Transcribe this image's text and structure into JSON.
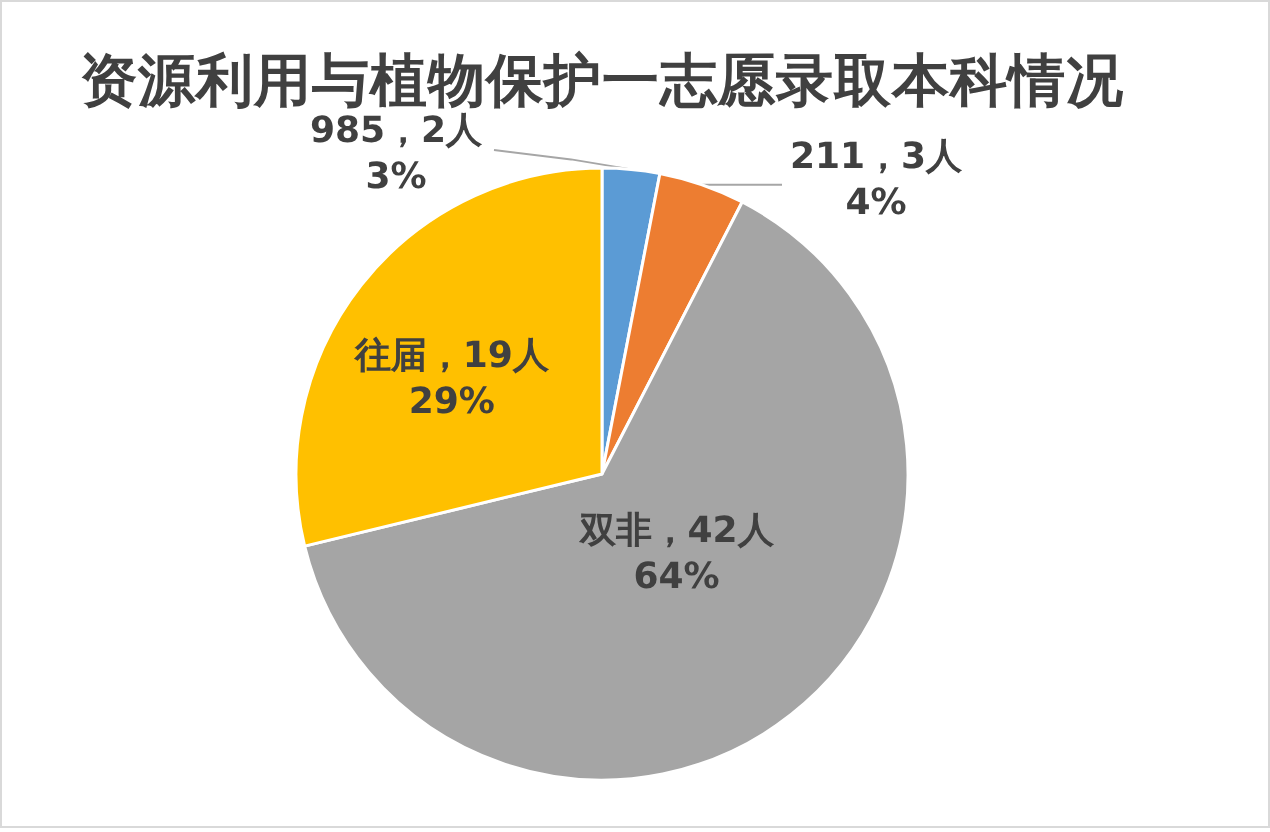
{
  "chart_data": {
    "type": "pie",
    "title": "资源利用与植物保护一志愿录取本科情况",
    "categories": [
      "985",
      "211",
      "双非",
      "往届"
    ],
    "values": [
      2,
      3,
      42,
      19
    ],
    "colors": [
      "#5b9bd5",
      "#ed7d31",
      "#a5a5a5",
      "#ffc000"
    ],
    "value_labels": [
      "2人\n3%",
      "3人\n4%",
      "42人\n64%",
      "19人\n29%"
    ],
    "legend": false
  }
}
